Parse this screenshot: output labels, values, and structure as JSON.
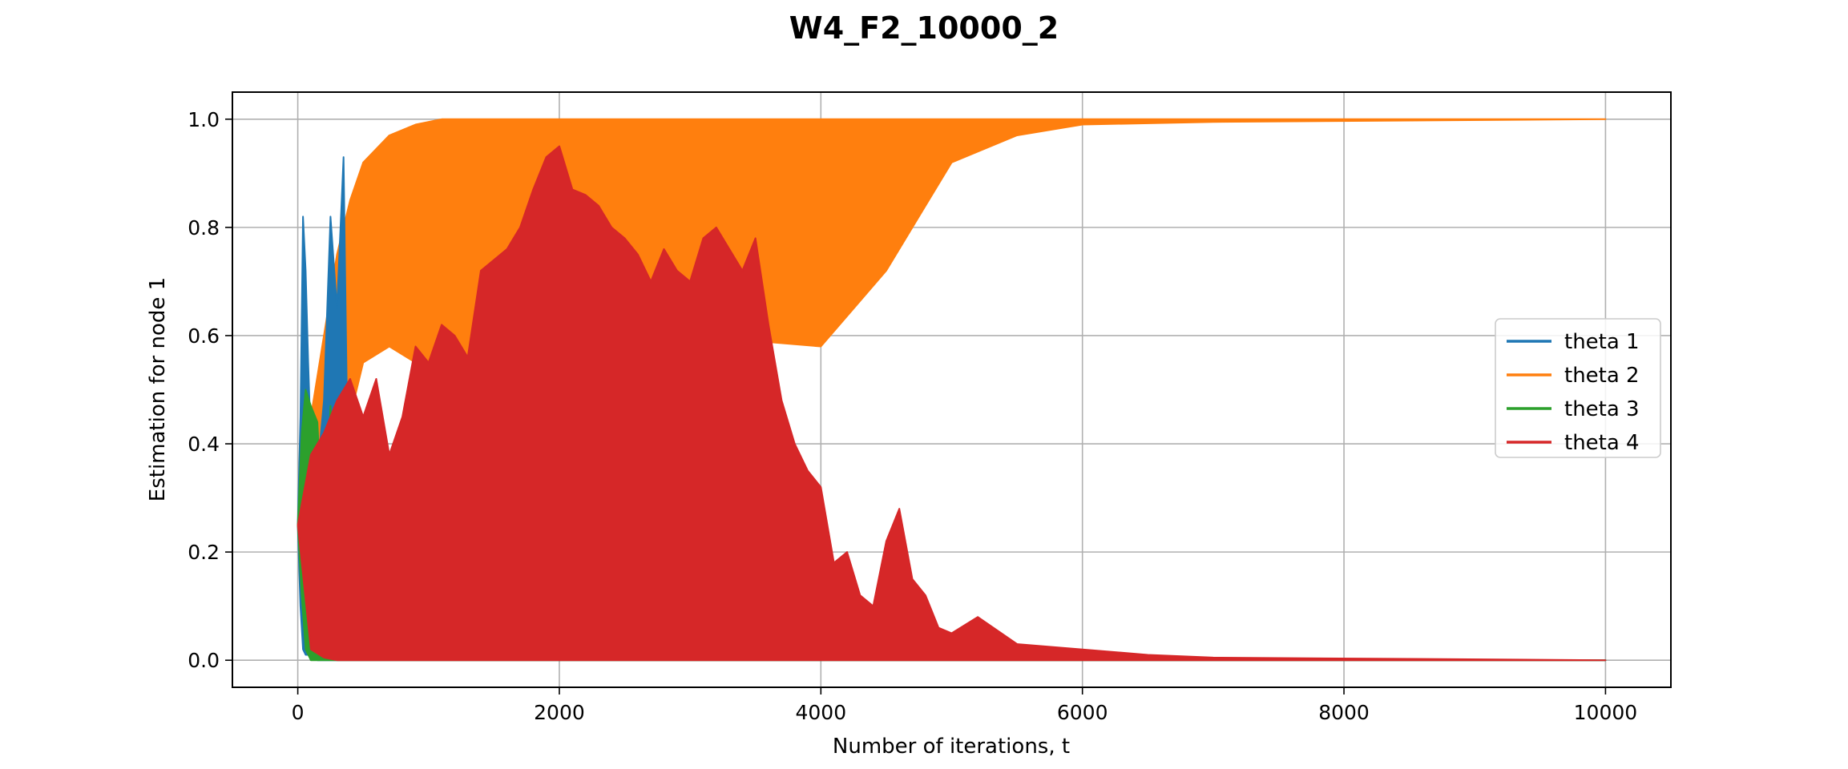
{
  "chart_data": {
    "type": "line",
    "title": "W4_F2_10000_2",
    "xlabel": "Number of iterations, t",
    "ylabel": "Estimation for node 1",
    "xlim": [
      -500,
      10500
    ],
    "ylim": [
      -0.05,
      1.05
    ],
    "xticks": [
      0,
      2000,
      4000,
      6000,
      8000,
      10000
    ],
    "yticks": [
      0.0,
      0.2,
      0.4,
      0.6,
      0.8,
      1.0
    ],
    "xtick_labels": [
      "0",
      "2000",
      "4000",
      "6000",
      "8000",
      "10000"
    ],
    "ytick_labels": [
      "0.0",
      "0.2",
      "0.4",
      "0.6",
      "0.8",
      "1.0"
    ],
    "grid": true,
    "legend_position": "center-right",
    "series": [
      {
        "name": "theta 1",
        "color": "#1f77b4",
        "envelope": {
          "x": [
            0,
            20,
            40,
            60,
            80,
            100,
            150,
            200,
            250,
            300,
            350,
            400,
            500,
            700,
            1000,
            10000
          ],
          "upper": [
            0.25,
            0.45,
            0.82,
            0.72,
            0.55,
            0.4,
            0.35,
            0.48,
            0.82,
            0.65,
            0.93,
            0.05,
            0.02,
            0.01,
            0.0,
            0.0
          ],
          "lower": [
            0.25,
            0.1,
            0.02,
            0.01,
            0.01,
            0.005,
            0.0,
            0.0,
            0.0,
            0.0,
            0.0,
            0.0,
            0.0,
            0.0,
            0.0,
            0.0
          ]
        }
      },
      {
        "name": "theta 2",
        "color": "#ff7f0e",
        "envelope": {
          "x": [
            0,
            50,
            100,
            200,
            300,
            400,
            500,
            700,
            900,
            1100,
            1400,
            2000,
            3000,
            4000,
            4500,
            5000,
            5500,
            6000,
            7000,
            10000
          ],
          "upper": [
            0.25,
            0.35,
            0.45,
            0.6,
            0.75,
            0.85,
            0.92,
            0.97,
            0.99,
            1.0,
            1.0,
            1.0,
            1.0,
            1.0,
            1.0,
            1.0,
            1.0,
            1.0,
            1.0,
            1.0
          ],
          "lower": [
            0.25,
            0.28,
            0.32,
            0.38,
            0.42,
            0.45,
            0.55,
            0.58,
            0.55,
            0.52,
            0.5,
            0.55,
            0.6,
            0.58,
            0.72,
            0.92,
            0.97,
            0.99,
            0.995,
            1.0
          ]
        }
      },
      {
        "name": "theta 3",
        "color": "#2ca02c",
        "envelope": {
          "x": [
            0,
            30,
            60,
            100,
            150,
            200,
            250,
            300,
            400,
            500,
            700,
            1000,
            10000
          ],
          "upper": [
            0.25,
            0.42,
            0.5,
            0.47,
            0.44,
            0.2,
            0.47,
            0.05,
            0.03,
            0.03,
            0.01,
            0.005,
            0.0
          ],
          "lower": [
            0.25,
            0.12,
            0.02,
            0.0,
            0.0,
            0.0,
            0.0,
            0.0,
            0.0,
            0.0,
            0.0,
            0.0,
            0.0
          ]
        }
      },
      {
        "name": "theta 4",
        "color": "#d62728",
        "envelope": {
          "x": [
            0,
            100,
            200,
            300,
            400,
            500,
            600,
            700,
            800,
            900,
            1000,
            1100,
            1200,
            1300,
            1400,
            1500,
            1600,
            1700,
            1800,
            1900,
            2000,
            2100,
            2200,
            2300,
            2400,
            2500,
            2600,
            2700,
            2800,
            2900,
            3000,
            3100,
            3200,
            3300,
            3400,
            3500,
            3600,
            3700,
            3800,
            3900,
            4000,
            4100,
            4200,
            4300,
            4400,
            4500,
            4600,
            4700,
            4800,
            4900,
            5000,
            5200,
            5500,
            6000,
            6500,
            7000,
            10000
          ],
          "upper": [
            0.25,
            0.38,
            0.42,
            0.48,
            0.52,
            0.45,
            0.52,
            0.38,
            0.45,
            0.58,
            0.55,
            0.62,
            0.6,
            0.56,
            0.72,
            0.74,
            0.76,
            0.8,
            0.87,
            0.93,
            0.95,
            0.87,
            0.86,
            0.84,
            0.8,
            0.78,
            0.75,
            0.7,
            0.76,
            0.72,
            0.7,
            0.78,
            0.8,
            0.76,
            0.72,
            0.78,
            0.62,
            0.48,
            0.4,
            0.35,
            0.32,
            0.18,
            0.2,
            0.12,
            0.1,
            0.22,
            0.28,
            0.15,
            0.12,
            0.06,
            0.05,
            0.08,
            0.03,
            0.02,
            0.01,
            0.005,
            0.0
          ],
          "lower": [
            0.25,
            0.02,
            0.005,
            0.0,
            0.0,
            0.0,
            0.0,
            0.0,
            0.0,
            0.0,
            0.0,
            0.0,
            0.0,
            0.0,
            0.0,
            0.0,
            0.0,
            0.0,
            0.0,
            0.0,
            0.0,
            0.0,
            0.0,
            0.0,
            0.0,
            0.0,
            0.0,
            0.0,
            0.0,
            0.0,
            0.0,
            0.0,
            0.0,
            0.0,
            0.0,
            0.0,
            0.0,
            0.0,
            0.0,
            0.0,
            0.0,
            0.0,
            0.0,
            0.0,
            0.0,
            0.0,
            0.0,
            0.0,
            0.0,
            0.0,
            0.0,
            0.0,
            0.0,
            0.0,
            0.0,
            0.0,
            0.0
          ]
        }
      }
    ]
  }
}
